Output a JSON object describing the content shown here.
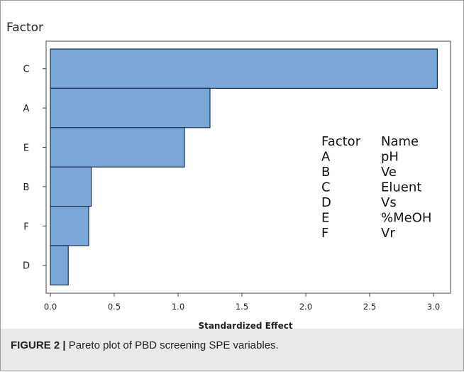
{
  "caption": {
    "label": "FIGURE 2 |",
    "text": "Pareto plot of PBD screening SPE variables."
  },
  "legend_table": {
    "headers": [
      "Factor",
      "Name"
    ],
    "rows": [
      [
        "A",
        "pH"
      ],
      [
        "B",
        "Ve"
      ],
      [
        "C",
        "Eluent"
      ],
      [
        "D",
        "Vs"
      ],
      [
        "E",
        "%MeOH"
      ],
      [
        "F",
        "Vr"
      ]
    ]
  },
  "chart_data": {
    "type": "bar",
    "orientation": "horizontal",
    "title": "",
    "ylabel": "Factor",
    "xlabel": "Standardized Effect",
    "categories": [
      "C",
      "A",
      "E",
      "B",
      "F",
      "D"
    ],
    "values": [
      3.03,
      1.25,
      1.05,
      0.32,
      0.3,
      0.14
    ],
    "xlim": [
      0.0,
      3.1
    ],
    "xticks": [
      "0.0",
      "0.5",
      "1.0",
      "1.5",
      "2.0",
      "2.5",
      "3.0"
    ],
    "grid": false,
    "bar_color": "#7aa6d8",
    "bar_edge_color": "#1c2f4f"
  }
}
